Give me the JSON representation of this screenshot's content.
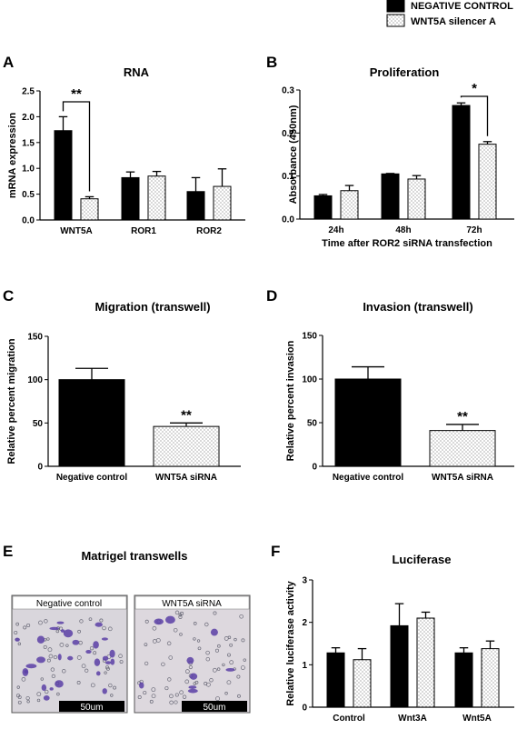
{
  "legend": {
    "entries": [
      {
        "label": "NEGATIVE CONTROL",
        "color": "#000000",
        "pattern": "solid"
      },
      {
        "label": "WNT5A silencer A",
        "color": "#ffffff",
        "pattern": "dots"
      }
    ]
  },
  "panels": {
    "A": {
      "label": "A",
      "title": "RNA"
    },
    "B": {
      "label": "B",
      "title": "Proliferation"
    },
    "C": {
      "label": "C",
      "title": "Migration (transwell)"
    },
    "D": {
      "label": "D",
      "title": "Invasion (transwell)"
    },
    "E": {
      "label": "E",
      "title": "Matrigel transwells",
      "images": [
        {
          "caption": "Negative control",
          "scale_bar": "50um"
        },
        {
          "caption": "WNT5A siRNA",
          "scale_bar": "50um"
        }
      ]
    },
    "F": {
      "label": "F",
      "title": "Luciferase"
    }
  },
  "chart_data": [
    {
      "id": "A",
      "type": "bar",
      "title": "RNA",
      "ylabel": "mRNA expression",
      "xlabel": "",
      "categories": [
        "WNT5A",
        "ROR1",
        "ROR2"
      ],
      "ylim": [
        0,
        2.5
      ],
      "yticks": [
        0,
        0.5,
        1.0,
        1.5,
        2.0,
        2.5
      ],
      "series": [
        {
          "name": "NEGATIVE CONTROL",
          "values": [
            1.73,
            0.82,
            0.55
          ],
          "errors": [
            0.27,
            0.11,
            0.27
          ]
        },
        {
          "name": "WNT5A silencer A",
          "values": [
            0.41,
            0.85,
            0.65
          ],
          "errors": [
            0.04,
            0.09,
            0.34
          ]
        }
      ],
      "significance": [
        {
          "category": 0,
          "label": "**"
        }
      ]
    },
    {
      "id": "B",
      "type": "bar",
      "title": "Proliferation",
      "ylabel": "Absorbance (450nm)",
      "xlabel": "Time after ROR2 siRNA transfection",
      "categories": [
        "24h",
        "48h",
        "72h"
      ],
      "ylim": [
        0,
        0.3
      ],
      "yticks": [
        0.0,
        0.1,
        0.2,
        0.3
      ],
      "series": [
        {
          "name": "NEGATIVE CONTROL",
          "values": [
            0.054,
            0.105,
            0.264
          ],
          "errors": [
            0.003,
            0.001,
            0.006
          ]
        },
        {
          "name": "WNT5A silencer A",
          "values": [
            0.066,
            0.093,
            0.174
          ],
          "errors": [
            0.012,
            0.008,
            0.006
          ]
        }
      ],
      "significance": [
        {
          "category": 2,
          "label": "*"
        }
      ]
    },
    {
      "id": "C",
      "type": "bar",
      "title": "Migration (transwell)",
      "ylabel": "Relative percent migration",
      "xlabel": "",
      "categories": [
        "Negative control",
        "WNT5A siRNA"
      ],
      "ylim": [
        0,
        150
      ],
      "yticks": [
        0,
        50,
        100,
        150
      ],
      "values": [
        100,
        46
      ],
      "errors": [
        13,
        4
      ],
      "patterns": [
        "solid",
        "dots"
      ],
      "significance": [
        {
          "category": 1,
          "label": "**"
        }
      ]
    },
    {
      "id": "D",
      "type": "bar",
      "title": "Invasion (transwell)",
      "ylabel": "Relative percent invasion",
      "xlabel": "",
      "categories": [
        "Negative control",
        "WNT5A siRNA"
      ],
      "ylim": [
        0,
        150
      ],
      "yticks": [
        0,
        50,
        100,
        150
      ],
      "values": [
        100,
        41
      ],
      "errors": [
        14,
        7
      ],
      "patterns": [
        "solid",
        "dots"
      ],
      "significance": [
        {
          "category": 1,
          "label": "**"
        }
      ]
    },
    {
      "id": "F",
      "type": "bar",
      "title": "Luciferase",
      "ylabel": "Relative luciferase activity",
      "xlabel": "",
      "categories": [
        "Control",
        "Wnt3A",
        "Wnt5A"
      ],
      "ylim": [
        0,
        3
      ],
      "yticks": [
        0,
        1,
        2,
        3
      ],
      "series": [
        {
          "name": "NEGATIVE CONTROL",
          "values": [
            1.28,
            1.92,
            1.28
          ],
          "errors": [
            0.12,
            0.52,
            0.12
          ]
        },
        {
          "name": "WNT5A silencer A",
          "values": [
            1.12,
            2.1,
            1.38
          ],
          "errors": [
            0.26,
            0.14,
            0.18
          ]
        }
      ]
    }
  ]
}
